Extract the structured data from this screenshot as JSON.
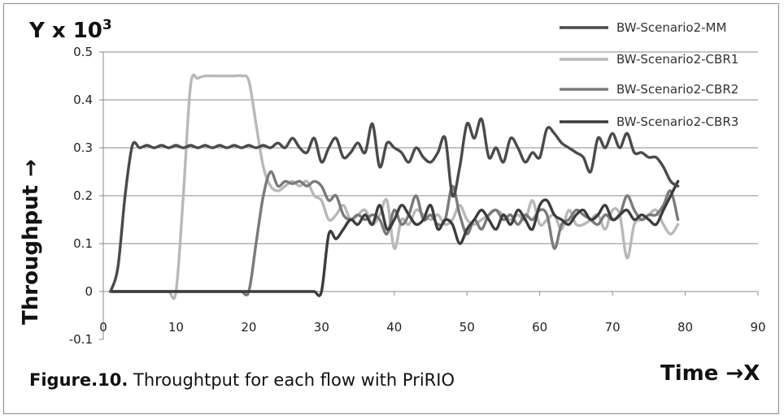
{
  "chart_data": {
    "type": "line",
    "ytitle": "Y x 10",
    "ytitle_sup": "3",
    "ylabel": "Throughput",
    "ylabel_arrow": "→",
    "xlabel": "Time →X",
    "caption_prefix": "Figure.10.",
    "caption_text": " Throughtput for each flow with PriRIO",
    "xlim": [
      0,
      90
    ],
    "ylim": [
      -0.1,
      0.5
    ],
    "xticks": [
      "0",
      "10",
      "20",
      "30",
      "40",
      "50",
      "60",
      "70",
      "80",
      "90"
    ],
    "yticks": [
      "-0.1",
      "0",
      "0.1",
      "0.2",
      "0.3",
      "0.4",
      "0.5"
    ],
    "grid": "horizontal",
    "legend_position": "top-right",
    "series": [
      {
        "name": "BW-Scenario2-MM",
        "color": "#4a4a4a",
        "x": [
          1,
          2,
          3,
          4,
          5,
          6,
          7,
          8,
          9,
          10,
          11,
          12,
          13,
          14,
          15,
          16,
          17,
          18,
          19,
          20,
          21,
          22,
          23,
          24,
          25,
          26,
          27,
          28,
          29,
          30,
          31,
          32,
          33,
          34,
          35,
          36,
          37,
          38,
          39,
          40,
          41,
          42,
          43,
          44,
          45,
          46,
          47,
          48,
          49,
          50,
          51,
          52,
          53,
          54,
          55,
          56,
          57,
          58,
          59,
          60,
          61,
          62,
          63,
          64,
          65,
          66,
          67,
          68,
          69,
          70,
          71,
          72,
          73,
          74,
          75,
          76,
          77,
          78,
          79
        ],
        "values": [
          0,
          0.05,
          0.2,
          0.305,
          0.3,
          0.305,
          0.3,
          0.305,
          0.3,
          0.305,
          0.3,
          0.305,
          0.3,
          0.305,
          0.3,
          0.305,
          0.3,
          0.305,
          0.3,
          0.305,
          0.3,
          0.305,
          0.3,
          0.31,
          0.3,
          0.32,
          0.3,
          0.29,
          0.32,
          0.27,
          0.3,
          0.32,
          0.28,
          0.29,
          0.31,
          0.29,
          0.35,
          0.26,
          0.31,
          0.3,
          0.29,
          0.27,
          0.3,
          0.28,
          0.27,
          0.29,
          0.32,
          0.2,
          0.26,
          0.35,
          0.32,
          0.36,
          0.28,
          0.3,
          0.27,
          0.32,
          0.3,
          0.27,
          0.29,
          0.28,
          0.34,
          0.33,
          0.31,
          0.3,
          0.29,
          0.28,
          0.25,
          0.32,
          0.3,
          0.33,
          0.3,
          0.33,
          0.29,
          0.29,
          0.28,
          0.28,
          0.26,
          0.23,
          0.22
        ]
      },
      {
        "name": "BW-Scenario2-CBR1",
        "color": "#b8b8b8",
        "x": [
          1,
          2,
          3,
          4,
          5,
          6,
          7,
          8,
          9,
          10,
          11,
          12,
          13,
          14,
          15,
          16,
          17,
          18,
          19,
          20,
          21,
          22,
          23,
          24,
          25,
          26,
          27,
          28,
          29,
          30,
          31,
          32,
          33,
          34,
          35,
          36,
          37,
          38,
          39,
          40,
          41,
          42,
          43,
          44,
          45,
          46,
          47,
          48,
          49,
          50,
          51,
          52,
          53,
          54,
          55,
          56,
          57,
          58,
          59,
          60,
          61,
          62,
          63,
          64,
          65,
          66,
          67,
          68,
          69,
          70,
          71,
          72,
          73,
          74,
          75,
          76,
          77,
          78,
          79
        ],
        "values": [
          0,
          0,
          0,
          0,
          0,
          0,
          0,
          0,
          0,
          0,
          0.2,
          0.43,
          0.445,
          0.45,
          0.45,
          0.45,
          0.45,
          0.45,
          0.45,
          0.44,
          0.35,
          0.26,
          0.22,
          0.21,
          0.22,
          0.23,
          0.22,
          0.23,
          0.2,
          0.19,
          0.15,
          0.16,
          0.18,
          0.15,
          0.16,
          0.17,
          0.14,
          0.16,
          0.19,
          0.09,
          0.15,
          0.14,
          0.17,
          0.16,
          0.15,
          0.16,
          0.14,
          0.15,
          0.18,
          0.15,
          0.14,
          0.15,
          0.16,
          0.17,
          0.16,
          0.15,
          0.16,
          0.15,
          0.19,
          0.14,
          0.15,
          0.16,
          0.13,
          0.17,
          0.14,
          0.14,
          0.15,
          0.16,
          0.13,
          0.17,
          0.16,
          0.07,
          0.14,
          0.15,
          0.16,
          0.17,
          0.14,
          0.12,
          0.14
        ]
      },
      {
        "name": "BW-Scenario2-CBR2",
        "color": "#7a7a7a",
        "x": [
          1,
          2,
          3,
          4,
          5,
          6,
          7,
          8,
          9,
          10,
          11,
          12,
          13,
          14,
          15,
          16,
          17,
          18,
          19,
          20,
          21,
          22,
          23,
          24,
          25,
          26,
          27,
          28,
          29,
          30,
          31,
          32,
          33,
          34,
          35,
          36,
          37,
          38,
          39,
          40,
          41,
          42,
          43,
          44,
          45,
          46,
          47,
          48,
          49,
          50,
          51,
          52,
          53,
          54,
          55,
          56,
          57,
          58,
          59,
          60,
          61,
          62,
          63,
          64,
          65,
          66,
          67,
          68,
          69,
          70,
          71,
          72,
          73,
          74,
          75,
          76,
          77,
          78,
          79
        ],
        "values": [
          0,
          0,
          0,
          0,
          0,
          0,
          0,
          0,
          0,
          0,
          0,
          0,
          0,
          0,
          0,
          0,
          0,
          0,
          0,
          0,
          0.1,
          0.2,
          0.25,
          0.22,
          0.23,
          0.225,
          0.23,
          0.22,
          0.23,
          0.22,
          0.19,
          0.2,
          0.16,
          0.15,
          0.16,
          0.15,
          0.16,
          0.15,
          0.12,
          0.17,
          0.14,
          0.16,
          0.2,
          0.15,
          0.16,
          0.14,
          0.15,
          0.22,
          0.16,
          0.12,
          0.15,
          0.13,
          0.16,
          0.17,
          0.15,
          0.16,
          0.14,
          0.16,
          0.15,
          0.17,
          0.16,
          0.09,
          0.14,
          0.15,
          0.17,
          0.16,
          0.15,
          0.14,
          0.16,
          0.15,
          0.16,
          0.2,
          0.17,
          0.15,
          0.16,
          0.16,
          0.18,
          0.21,
          0.15
        ]
      },
      {
        "name": "BW-Scenario2-CBR3",
        "color": "#3c3c3c",
        "x": [
          1,
          2,
          3,
          4,
          5,
          6,
          7,
          8,
          9,
          10,
          11,
          12,
          13,
          14,
          15,
          16,
          17,
          18,
          19,
          20,
          21,
          22,
          23,
          24,
          25,
          26,
          27,
          28,
          29,
          30,
          31,
          32,
          33,
          34,
          35,
          36,
          37,
          38,
          39,
          40,
          41,
          42,
          43,
          44,
          45,
          46,
          47,
          48,
          49,
          50,
          51,
          52,
          53,
          54,
          55,
          56,
          57,
          58,
          59,
          60,
          61,
          62,
          63,
          64,
          65,
          66,
          67,
          68,
          69,
          70,
          71,
          72,
          73,
          74,
          75,
          76,
          77,
          78,
          79
        ],
        "values": [
          0,
          0,
          0,
          0,
          0,
          0,
          0,
          0,
          0,
          0,
          0,
          0,
          0,
          0,
          0,
          0,
          0,
          0,
          0,
          0,
          0,
          0,
          0,
          0,
          0,
          0,
          0,
          0,
          0,
          0,
          0.12,
          0.11,
          0.13,
          0.15,
          0.14,
          0.16,
          0.14,
          0.18,
          0.13,
          0.15,
          0.18,
          0.16,
          0.14,
          0.15,
          0.18,
          0.13,
          0.15,
          0.14,
          0.1,
          0.13,
          0.15,
          0.17,
          0.15,
          0.13,
          0.16,
          0.14,
          0.17,
          0.15,
          0.13,
          0.18,
          0.19,
          0.16,
          0.15,
          0.14,
          0.16,
          0.17,
          0.15,
          0.16,
          0.18,
          0.15,
          0.16,
          0.17,
          0.15,
          0.16,
          0.15,
          0.14,
          0.17,
          0.2,
          0.23
        ]
      }
    ]
  }
}
